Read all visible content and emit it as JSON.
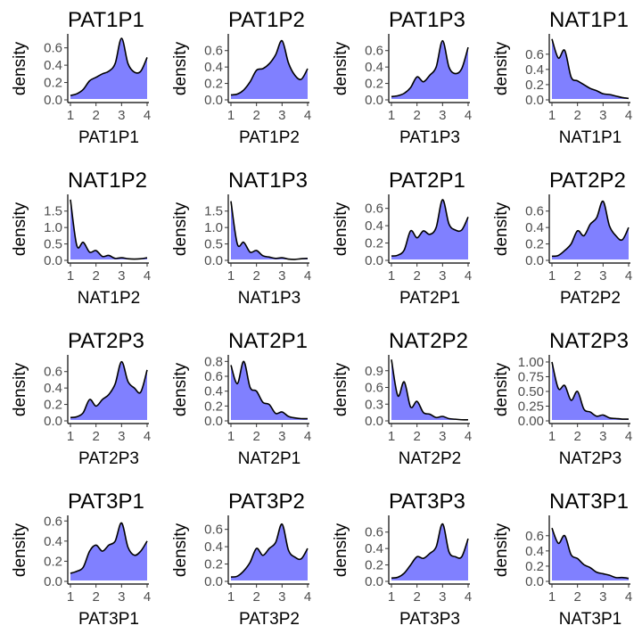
{
  "style": {
    "fill_color": "#8080ff",
    "line_color": "#000000"
  },
  "chart_data": [
    {
      "type": "area",
      "title": "PAT1P1",
      "xlabel": "PAT1P1",
      "ylabel": "density",
      "xlim": [
        1,
        4
      ],
      "ylim": [
        0,
        0.72
      ],
      "xticks": [
        "1",
        "2",
        "3",
        "4"
      ],
      "yticks": [
        0,
        0.2,
        0.4,
        0.6
      ],
      "ytick_labels": [
        "0.0",
        "0.2",
        "0.4",
        "0.6"
      ],
      "x": [
        1,
        1.25,
        1.5,
        1.75,
        2,
        2.25,
        2.5,
        2.75,
        3,
        3.25,
        3.5,
        3.75,
        4
      ],
      "y": [
        0.05,
        0.07,
        0.12,
        0.22,
        0.26,
        0.3,
        0.33,
        0.42,
        0.71,
        0.42,
        0.32,
        0.33,
        0.49
      ]
    },
    {
      "type": "area",
      "title": "PAT1P2",
      "xlabel": "PAT1P2",
      "ylabel": "density",
      "xlim": [
        1,
        4
      ],
      "ylim": [
        0,
        0.76
      ],
      "xticks": [
        "1",
        "2",
        "3",
        "4"
      ],
      "yticks": [
        0,
        0.2,
        0.4,
        0.6
      ],
      "ytick_labels": [
        "0.0",
        "0.2",
        "0.4",
        "0.6"
      ],
      "x": [
        1,
        1.25,
        1.5,
        1.75,
        2,
        2.25,
        2.5,
        2.75,
        3,
        3.25,
        3.5,
        3.75,
        4
      ],
      "y": [
        0.06,
        0.07,
        0.12,
        0.22,
        0.36,
        0.38,
        0.44,
        0.55,
        0.72,
        0.45,
        0.3,
        0.25,
        0.38
      ]
    },
    {
      "type": "area",
      "title": "PAT1P3",
      "xlabel": "PAT1P3",
      "ylabel": "density",
      "xlim": [
        1,
        4
      ],
      "ylim": [
        0,
        0.76
      ],
      "xticks": [
        "1",
        "2",
        "3",
        "4"
      ],
      "yticks": [
        0,
        0.2,
        0.4,
        0.6
      ],
      "ytick_labels": [
        "0.0",
        "0.2",
        "0.4",
        "0.6"
      ],
      "x": [
        1,
        1.25,
        1.5,
        1.75,
        2,
        2.25,
        2.5,
        2.75,
        3,
        3.25,
        3.5,
        3.75,
        4
      ],
      "y": [
        0.04,
        0.05,
        0.08,
        0.15,
        0.28,
        0.22,
        0.3,
        0.4,
        0.72,
        0.4,
        0.32,
        0.38,
        0.64
      ]
    },
    {
      "type": "area",
      "title": "NAT1P1",
      "xlabel": "NAT1P1",
      "ylabel": "density",
      "xlim": [
        1,
        4
      ],
      "ylim": [
        0,
        0.82
      ],
      "xticks": [
        "1",
        "2",
        "3",
        "4"
      ],
      "yticks": [
        0,
        0.2,
        0.4,
        0.6
      ],
      "ytick_labels": [
        "0.0",
        "0.2",
        "0.4",
        "0.6"
      ],
      "x": [
        1,
        1.25,
        1.5,
        1.75,
        2,
        2.25,
        2.5,
        2.75,
        3,
        3.25,
        3.5,
        3.75,
        4
      ],
      "y": [
        0.8,
        0.55,
        0.65,
        0.3,
        0.25,
        0.2,
        0.15,
        0.12,
        0.08,
        0.07,
        0.05,
        0.03,
        0.02
      ]
    },
    {
      "type": "area",
      "title": "NAT1P2",
      "xlabel": "NAT1P2",
      "ylabel": "density",
      "xlim": [
        1,
        4
      ],
      "ylim": [
        0,
        1.9
      ],
      "xticks": [
        "1",
        "2",
        "3",
        "4"
      ],
      "yticks": [
        0,
        0.5,
        1,
        1.5
      ],
      "ytick_labels": [
        "0.0",
        "0.5",
        "1.0",
        "1.5"
      ],
      "x": [
        1,
        1.25,
        1.5,
        1.75,
        2,
        2.25,
        2.5,
        2.75,
        3,
        3.25,
        3.5,
        3.75,
        4
      ],
      "y": [
        1.85,
        0.45,
        0.55,
        0.25,
        0.3,
        0.12,
        0.15,
        0.06,
        0.08,
        0.05,
        0.04,
        0.05,
        0.08
      ]
    },
    {
      "type": "area",
      "title": "NAT1P3",
      "xlabel": "NAT1P3",
      "ylabel": "density",
      "xlim": [
        1,
        4
      ],
      "ylim": [
        0,
        1.9
      ],
      "xticks": [
        "1",
        "2",
        "3",
        "4"
      ],
      "yticks": [
        0,
        0.5,
        1,
        1.5
      ],
      "ytick_labels": [
        "0.0",
        "0.5",
        "1.0",
        "1.5"
      ],
      "x": [
        1,
        1.25,
        1.5,
        1.75,
        2,
        2.25,
        2.5,
        2.75,
        3,
        3.25,
        3.5,
        3.75,
        4
      ],
      "y": [
        1.8,
        0.5,
        0.55,
        0.25,
        0.3,
        0.14,
        0.1,
        0.06,
        0.08,
        0.04,
        0.03,
        0.05,
        0.06
      ]
    },
    {
      "type": "area",
      "title": "PAT2P1",
      "xlabel": "PAT2P1",
      "ylabel": "density",
      "xlim": [
        1,
        4
      ],
      "ylim": [
        0,
        0.72
      ],
      "xticks": [
        "1",
        "2",
        "3",
        "4"
      ],
      "yticks": [
        0,
        0.2,
        0.4,
        0.6
      ],
      "ytick_labels": [
        "0.0",
        "0.2",
        "0.4",
        "0.6"
      ],
      "x": [
        1,
        1.25,
        1.5,
        1.75,
        2,
        2.25,
        2.5,
        2.75,
        3,
        3.25,
        3.5,
        3.75,
        4
      ],
      "y": [
        0.05,
        0.06,
        0.12,
        0.34,
        0.26,
        0.34,
        0.3,
        0.38,
        0.7,
        0.42,
        0.35,
        0.35,
        0.5
      ]
    },
    {
      "type": "area",
      "title": "PAT2P2",
      "xlabel": "PAT2P2",
      "ylabel": "density",
      "xlim": [
        1,
        4
      ],
      "ylim": [
        0,
        0.76
      ],
      "xticks": [
        "1",
        "2",
        "3",
        "4"
      ],
      "yticks": [
        0,
        0.2,
        0.4,
        0.6
      ],
      "ytick_labels": [
        "0.0",
        "0.2",
        "0.4",
        "0.6"
      ],
      "x": [
        1,
        1.25,
        1.5,
        1.75,
        2,
        2.25,
        2.5,
        2.75,
        3,
        3.25,
        3.5,
        3.75,
        4
      ],
      "y": [
        0.05,
        0.06,
        0.12,
        0.2,
        0.36,
        0.3,
        0.44,
        0.52,
        0.72,
        0.42,
        0.3,
        0.25,
        0.4
      ]
    },
    {
      "type": "area",
      "title": "PAT2P3",
      "xlabel": "PAT2P3",
      "ylabel": "density",
      "xlim": [
        1,
        4
      ],
      "ylim": [
        0,
        0.76
      ],
      "xticks": [
        "1",
        "2",
        "3",
        "4"
      ],
      "yticks": [
        0,
        0.2,
        0.4,
        0.6
      ],
      "ytick_labels": [
        "0.0",
        "0.2",
        "0.4",
        "0.6"
      ],
      "x": [
        1,
        1.25,
        1.5,
        1.75,
        2,
        2.25,
        2.5,
        2.75,
        3,
        3.25,
        3.5,
        3.75,
        4
      ],
      "y": [
        0.04,
        0.05,
        0.1,
        0.26,
        0.18,
        0.26,
        0.32,
        0.45,
        0.72,
        0.48,
        0.4,
        0.35,
        0.62
      ]
    },
    {
      "type": "area",
      "title": "NAT2P1",
      "xlabel": "NAT2P1",
      "ylabel": "density",
      "xlim": [
        1,
        4
      ],
      "ylim": [
        0,
        0.84
      ],
      "xticks": [
        "1",
        "2",
        "3",
        "4"
      ],
      "yticks": [
        0,
        0.2,
        0.4,
        0.6,
        0.8
      ],
      "ytick_labels": [
        "0.0",
        "0.2",
        "0.4",
        "0.6",
        "0.8"
      ],
      "x": [
        1,
        1.25,
        1.5,
        1.75,
        2,
        2.25,
        2.5,
        2.75,
        3,
        3.25,
        3.5,
        3.75,
        4
      ],
      "y": [
        0.75,
        0.5,
        0.8,
        0.45,
        0.4,
        0.25,
        0.22,
        0.1,
        0.12,
        0.06,
        0.04,
        0.03,
        0.03
      ]
    },
    {
      "type": "area",
      "title": "NAT2P2",
      "xlabel": "NAT2P2",
      "ylabel": "density",
      "xlim": [
        1,
        4
      ],
      "ylim": [
        0,
        1.12
      ],
      "xticks": [
        "1",
        "2",
        "3",
        "4"
      ],
      "yticks": [
        0,
        0.3,
        0.6,
        0.9
      ],
      "ytick_labels": [
        "0.0",
        "0.3",
        "0.6",
        "0.9"
      ],
      "x": [
        1,
        1.25,
        1.5,
        1.75,
        2,
        2.25,
        2.5,
        2.75,
        3,
        3.25,
        3.5,
        3.75,
        4
      ],
      "y": [
        1.1,
        0.45,
        0.7,
        0.25,
        0.35,
        0.15,
        0.12,
        0.06,
        0.08,
        0.04,
        0.03,
        0.02,
        0.02
      ]
    },
    {
      "type": "area",
      "title": "NAT2P3",
      "xlabel": "NAT2P3",
      "ylabel": "density",
      "xlim": [
        1,
        4
      ],
      "ylim": [
        0,
        1.06
      ],
      "xticks": [
        "1",
        "2",
        "3",
        "4"
      ],
      "yticks": [
        0,
        0.25,
        0.5,
        0.75,
        1
      ],
      "ytick_labels": [
        "0.00",
        "0.25",
        "0.50",
        "0.75",
        "1.00"
      ],
      "x": [
        1,
        1.25,
        1.5,
        1.75,
        2,
        2.25,
        2.5,
        2.75,
        3,
        3.25,
        3.5,
        3.75,
        4
      ],
      "y": [
        1.0,
        0.55,
        0.6,
        0.35,
        0.5,
        0.2,
        0.15,
        0.08,
        0.1,
        0.05,
        0.04,
        0.03,
        0.03
      ]
    },
    {
      "type": "area",
      "title": "PAT3P1",
      "xlabel": "PAT3P1",
      "ylabel": "density",
      "xlim": [
        1,
        4
      ],
      "ylim": [
        0,
        0.62
      ],
      "xticks": [
        "1",
        "2",
        "3",
        "4"
      ],
      "yticks": [
        0,
        0.2,
        0.4,
        0.6
      ],
      "ytick_labels": [
        "0.0",
        "0.2",
        "0.4",
        "0.6"
      ],
      "x": [
        1,
        1.25,
        1.5,
        1.75,
        2,
        2.25,
        2.5,
        2.75,
        3,
        3.25,
        3.5,
        3.75,
        4
      ],
      "y": [
        0.08,
        0.1,
        0.14,
        0.3,
        0.36,
        0.3,
        0.36,
        0.4,
        0.58,
        0.34,
        0.26,
        0.3,
        0.4
      ]
    },
    {
      "type": "area",
      "title": "PAT3P2",
      "xlabel": "PAT3P2",
      "ylabel": "density",
      "xlim": [
        1,
        4
      ],
      "ylim": [
        0,
        0.72
      ],
      "xticks": [
        "1",
        "2",
        "3",
        "4"
      ],
      "yticks": [
        0,
        0.2,
        0.4,
        0.6
      ],
      "ytick_labels": [
        "0.0",
        "0.2",
        "0.4",
        "0.6"
      ],
      "x": [
        1,
        1.25,
        1.5,
        1.75,
        2,
        2.25,
        2.5,
        2.75,
        3,
        3.25,
        3.5,
        3.75,
        4
      ],
      "y": [
        0.05,
        0.06,
        0.12,
        0.22,
        0.38,
        0.3,
        0.38,
        0.45,
        0.66,
        0.36,
        0.28,
        0.26,
        0.38
      ]
    },
    {
      "type": "area",
      "title": "PAT3P3",
      "xlabel": "PAT3P3",
      "ylabel": "density",
      "xlim": [
        1,
        4
      ],
      "ylim": [
        0,
        0.76
      ],
      "xticks": [
        "1",
        "2",
        "3",
        "4"
      ],
      "yticks": [
        0,
        0.2,
        0.4,
        0.6
      ],
      "ytick_labels": [
        "0.0",
        "0.2",
        "0.4",
        "0.6"
      ],
      "x": [
        1,
        1.25,
        1.5,
        1.75,
        2,
        2.25,
        2.5,
        2.75,
        3,
        3.25,
        3.5,
        3.75,
        4
      ],
      "y": [
        0.04,
        0.05,
        0.1,
        0.2,
        0.3,
        0.28,
        0.34,
        0.42,
        0.7,
        0.36,
        0.3,
        0.3,
        0.52
      ]
    },
    {
      "type": "area",
      "title": "NAT3P1",
      "xlabel": "NAT3P1",
      "ylabel": "density",
      "xlim": [
        1,
        4
      ],
      "ylim": [
        0,
        0.82
      ],
      "xticks": [
        "1",
        "2",
        "3",
        "4"
      ],
      "yticks": [
        0,
        0.2,
        0.4,
        0.6
      ],
      "ytick_labels": [
        "0.0",
        "0.2",
        "0.4",
        "0.6"
      ],
      "x": [
        1,
        1.25,
        1.5,
        1.75,
        2,
        2.25,
        2.5,
        2.75,
        3,
        3.25,
        3.5,
        3.75,
        4
      ],
      "y": [
        0.7,
        0.5,
        0.6,
        0.35,
        0.3,
        0.22,
        0.18,
        0.12,
        0.1,
        0.08,
        0.05,
        0.05,
        0.04
      ]
    }
  ]
}
